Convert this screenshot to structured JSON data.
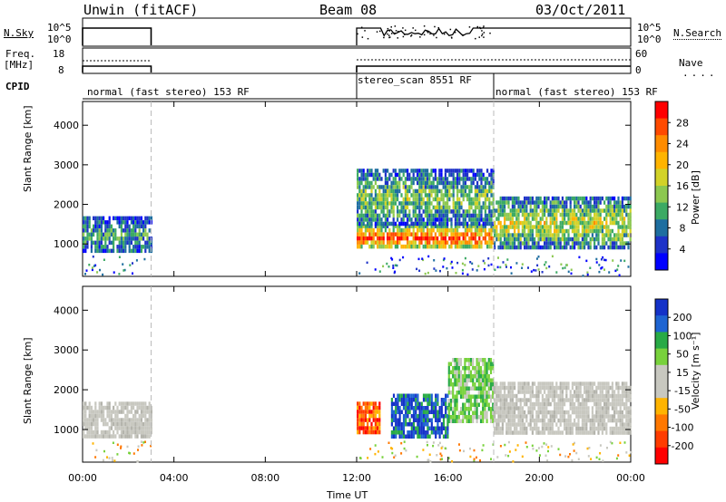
{
  "header": {
    "station": "Unwin (fitACF)",
    "beam": "Beam 08",
    "date": "03/Oct/2011"
  },
  "top_panels": {
    "nsky_label": "N.Sky",
    "nsky_ticks": [
      "10^5",
      "10^0"
    ],
    "nsearch_label": "N.Search",
    "nsearch_ticks": [
      "10^5",
      "10^0"
    ],
    "freq_label": "Freq.",
    "freq_unit": "[MHz]",
    "freq_ticks": [
      "18",
      "8"
    ],
    "nave_label": "Nave",
    "nave_ticks": [
      "60",
      "0"
    ],
    "cpid_label": "CPID",
    "cpid_segments": [
      {
        "label": "normal (fast stereo) 153 RF",
        "start_h": 0,
        "end_h": 3
      },
      {
        "label": "stereo_scan 8551 RF",
        "start_h": 12,
        "end_h": 18
      },
      {
        "label": "normal (fast stereo) 153 RF",
        "start_h": 18,
        "end_h": 24
      }
    ]
  },
  "chart_data": [
    {
      "type": "heatmap",
      "name": "power",
      "ylabel": "Slant Range [km]",
      "xlabel": "Time UT",
      "xlim": [
        0,
        24
      ],
      "ylim": [
        180,
        4600
      ],
      "y_ticks": [
        1000,
        2000,
        3000,
        4000
      ],
      "x_tick_labels": [
        "00:00",
        "04:00",
        "08:00",
        "12:00",
        "16:00",
        "20:00",
        "00:00"
      ],
      "x_tick_values": [
        0,
        4,
        8,
        12,
        16,
        20,
        24
      ],
      "colorbar_label": "Power [dB]",
      "colorbar_ticks": [
        "28",
        "24",
        "20",
        "16",
        "12",
        "8",
        "4"
      ],
      "colorbar_colors": [
        "#ff0000",
        "#ff4a00",
        "#ff8c00",
        "#ffb400",
        "#d2d228",
        "#8cc850",
        "#3caa64",
        "#1e6ea0",
        "#1e32c8",
        "#0000ff"
      ],
      "data_gaps": [
        [
          3,
          12
        ]
      ],
      "regions": [
        {
          "t0": 0,
          "t1": 3,
          "r0": 800,
          "r1": 1700,
          "level": 0.35
        },
        {
          "t0": 12,
          "t1": 18,
          "r0": 900,
          "r1": 1500,
          "level": 0.9
        },
        {
          "t0": 12,
          "t1": 18,
          "r0": 1500,
          "r1": 2900,
          "level": 0.45
        },
        {
          "t0": 18,
          "t1": 24,
          "r0": 900,
          "r1": 2200,
          "level": 0.55
        }
      ]
    },
    {
      "type": "heatmap",
      "name": "velocity",
      "ylabel": "Slant Range [km]",
      "xlabel": "Time UT",
      "xlim": [
        0,
        24
      ],
      "ylim": [
        180,
        4600
      ],
      "y_ticks": [
        1000,
        2000,
        3000,
        4000
      ],
      "x_tick_labels": [
        "00:00",
        "04:00",
        "08:00",
        "12:00",
        "16:00",
        "20:00",
        "00:00"
      ],
      "x_tick_values": [
        0,
        4,
        8,
        12,
        16,
        20,
        24
      ],
      "colorbar_label": "Velocity [m s⁻¹]",
      "colorbar_ticks": [
        "200",
        "100",
        "50",
        "15",
        "-15",
        "-50",
        "-100",
        "-200"
      ],
      "colorbar_colors": [
        "#1432c8",
        "#1e64d2",
        "#28aa46",
        "#78d23c",
        "#c8c8c0",
        "#c8c8c0",
        "#ffb400",
        "#ff7800",
        "#ff3c00",
        "#ff0000"
      ],
      "data_gaps": [
        [
          3,
          12
        ]
      ],
      "regions": [
        {
          "t0": 0,
          "t1": 3,
          "r0": 800,
          "r1": 1700,
          "class": "ground"
        },
        {
          "t0": 12,
          "t1": 13,
          "r0": 900,
          "r1": 1700,
          "class": "away-strong"
        },
        {
          "t0": 13.5,
          "t1": 16,
          "r0": 800,
          "r1": 1900,
          "class": "toward-strong"
        },
        {
          "t0": 16,
          "t1": 18,
          "r0": 1200,
          "r1": 2800,
          "class": "toward-weak"
        },
        {
          "t0": 18,
          "t1": 24,
          "r0": 900,
          "r1": 2200,
          "class": "ground"
        }
      ]
    }
  ],
  "xaxis_title": "Time UT",
  "range_label": "Slant Range [km]"
}
